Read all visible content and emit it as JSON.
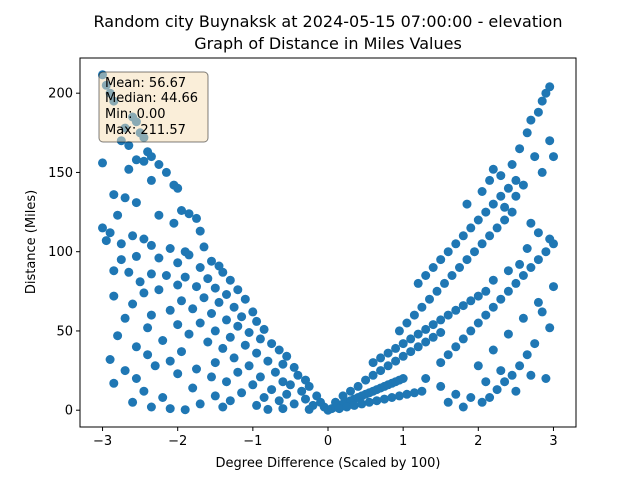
{
  "chart_data": {
    "type": "scatter",
    "title_line1": "Random city Buynaksk at 2024-05-15 07:00:00  - elevation",
    "title_line2": "Graph of Distance in Miles Values",
    "xlabel": "Degree Difference (Scaled by 100)",
    "ylabel": "Distance (Miles)",
    "xlim": [
      -3.3,
      3.3
    ],
    "ylim": [
      -10.6,
      222.2
    ],
    "xticks": [
      -3,
      -2,
      -1,
      0,
      1,
      2,
      3
    ],
    "yticks": [
      0,
      50,
      100,
      150,
      200
    ],
    "grid": false,
    "marker_color": "#1f77b4",
    "stats": {
      "mean": "Mean: 56.67",
      "median": "Median: 44.66",
      "min": "Min: 0.00",
      "max": "Max: 211.57"
    },
    "stats_box_fill": "#f5deb3",
    "points": [
      [
        -3.0,
        211.6
      ],
      [
        -2.95,
        205
      ],
      [
        -2.9,
        200
      ],
      [
        -2.85,
        195
      ],
      [
        -2.6,
        185
      ],
      [
        -2.55,
        182
      ],
      [
        -2.7,
        178
      ],
      [
        -2.5,
        175
      ],
      [
        -2.45,
        172
      ],
      [
        -2.75,
        170
      ],
      [
        -2.65,
        167
      ],
      [
        -2.4,
        163
      ],
      [
        -2.35,
        160
      ],
      [
        -2.55,
        158
      ],
      [
        -2.45,
        157
      ],
      [
        -3.0,
        156
      ],
      [
        -2.25,
        155
      ],
      [
        -2.65,
        152
      ],
      [
        -2.15,
        150
      ],
      [
        -2.35,
        145
      ],
      [
        -2.05,
        142
      ],
      [
        -2.0,
        140
      ],
      [
        -2.85,
        136
      ],
      [
        -2.7,
        134
      ],
      [
        -2.55,
        131
      ],
      [
        -2.8,
        123
      ],
      [
        -1.95,
        126
      ],
      [
        -1.85,
        124
      ],
      [
        -1.75,
        121
      ],
      [
        -2.25,
        123
      ],
      [
        -2.05,
        118
      ],
      [
        -3.0,
        115
      ],
      [
        -2.9,
        112
      ],
      [
        -2.6,
        110
      ],
      [
        -2.45,
        108
      ],
      [
        -1.7,
        113
      ],
      [
        -2.95,
        107
      ],
      [
        -2.75,
        105
      ],
      [
        -2.35,
        104
      ],
      [
        -2.1,
        102
      ],
      [
        -1.9,
        100
      ],
      [
        -1.65,
        103
      ],
      [
        -1.85,
        98
      ],
      [
        -2.55,
        97
      ],
      [
        -2.25,
        96
      ],
      [
        -2.75,
        95
      ],
      [
        -1.55,
        94
      ],
      [
        -2.0,
        93
      ],
      [
        -1.45,
        91
      ],
      [
        -1.7,
        90
      ],
      [
        -2.85,
        88
      ],
      [
        -2.65,
        87
      ],
      [
        -1.4,
        87
      ],
      [
        -2.35,
        86
      ],
      [
        -2.15,
        85
      ],
      [
        -1.9,
        84
      ],
      [
        -1.6,
        83
      ],
      [
        -1.3,
        82
      ],
      [
        -2.5,
        81
      ],
      [
        -2.0,
        79
      ],
      [
        -1.75,
        78
      ],
      [
        -1.5,
        77
      ],
      [
        -2.25,
        76
      ],
      [
        -1.2,
        76
      ],
      [
        -2.45,
        74
      ],
      [
        -1.35,
        73
      ],
      [
        -2.85,
        72
      ],
      [
        -1.65,
        71
      ],
      [
        -1.1,
        70
      ],
      [
        -1.95,
        69
      ],
      [
        -1.45,
        68
      ],
      [
        -2.6,
        67
      ],
      [
        -1.25,
        65
      ],
      [
        -1.8,
        64
      ],
      [
        -2.1,
        63
      ],
      [
        -1.0,
        62
      ],
      [
        -1.55,
        61
      ],
      [
        -2.35,
        60
      ],
      [
        -1.15,
        59
      ],
      [
        -2.7,
        58
      ],
      [
        -1.35,
        57
      ],
      [
        -0.95,
        56
      ],
      [
        -1.7,
        55
      ],
      [
        -2.0,
        54
      ],
      [
        -1.2,
        53
      ],
      [
        -2.4,
        52
      ],
      [
        -0.85,
        51
      ],
      [
        -1.5,
        50
      ],
      [
        -1.05,
        49
      ],
      [
        -1.85,
        48
      ],
      [
        -2.8,
        47
      ],
      [
        -1.3,
        46
      ],
      [
        -0.9,
        45
      ],
      [
        -2.2,
        44
      ],
      [
        -1.6,
        43
      ],
      [
        -0.75,
        42
      ],
      [
        -1.1,
        41
      ],
      [
        -2.55,
        40
      ],
      [
        -1.4,
        39
      ],
      [
        -0.65,
        38
      ],
      [
        -1.95,
        37
      ],
      [
        -0.95,
        36
      ],
      [
        -2.4,
        35
      ],
      [
        -0.55,
        34
      ],
      [
        -1.25,
        33
      ],
      [
        -2.9,
        32
      ],
      [
        -0.8,
        31
      ],
      [
        -2.1,
        31
      ],
      [
        -1.5,
        30
      ],
      [
        -0.6,
        29
      ],
      [
        -1.05,
        28
      ],
      [
        -2.3,
        28
      ],
      [
        -0.45,
        27
      ],
      [
        -1.75,
        26
      ],
      [
        -2.7,
        25
      ],
      [
        -0.7,
        24
      ],
      [
        -1.2,
        24
      ],
      [
        -2.0,
        23
      ],
      [
        -0.4,
        22
      ],
      [
        -0.9,
        21
      ],
      [
        -1.55,
        21
      ],
      [
        -2.55,
        20
      ],
      [
        -0.3,
        19
      ],
      [
        -0.6,
        18
      ],
      [
        -1.35,
        18
      ],
      [
        -2.85,
        17
      ],
      [
        -0.5,
        16
      ],
      [
        -1.0,
        16
      ],
      [
        -0.25,
        15
      ],
      [
        -1.8,
        14
      ],
      [
        -0.75,
        13
      ],
      [
        -0.35,
        12
      ],
      [
        -2.45,
        12
      ],
      [
        -1.15,
        11
      ],
      [
        -0.55,
        10
      ],
      [
        -0.15,
        9
      ],
      [
        -1.5,
        9
      ],
      [
        -0.85,
        8
      ],
      [
        -2.2,
        8
      ],
      [
        -0.3,
        7
      ],
      [
        -1.3,
        6
      ],
      [
        -0.65,
        6
      ],
      [
        -0.1,
        5
      ],
      [
        -2.6,
        5
      ],
      [
        -0.45,
        4
      ],
      [
        -1.7,
        4
      ],
      [
        -0.95,
        3
      ],
      [
        -0.2,
        3
      ],
      [
        -2.35,
        2
      ],
      [
        -0.05,
        2
      ],
      [
        -1.4,
        2
      ],
      [
        -0.6,
        1
      ],
      [
        -2.1,
        1
      ],
      [
        -0.25,
        0.5
      ],
      [
        -0.8,
        0.5
      ],
      [
        -1.9,
        0.3
      ],
      [
        0.0,
        0.0
      ],
      [
        0.05,
        1
      ],
      [
        0.1,
        2
      ],
      [
        0.15,
        3
      ],
      [
        0.2,
        4
      ],
      [
        0.25,
        5
      ],
      [
        0.3,
        6
      ],
      [
        0.35,
        7
      ],
      [
        0.4,
        8
      ],
      [
        0.45,
        9
      ],
      [
        0.5,
        10
      ],
      [
        0.55,
        11
      ],
      [
        0.6,
        12
      ],
      [
        0.65,
        13
      ],
      [
        0.7,
        14
      ],
      [
        0.75,
        15
      ],
      [
        0.8,
        16
      ],
      [
        0.85,
        17
      ],
      [
        0.9,
        18
      ],
      [
        0.95,
        19
      ],
      [
        1.0,
        20
      ],
      [
        0.1,
        5
      ],
      [
        0.2,
        9
      ],
      [
        0.3,
        12
      ],
      [
        0.4,
        15
      ],
      [
        0.5,
        19
      ],
      [
        0.6,
        22
      ],
      [
        0.7,
        25
      ],
      [
        0.8,
        28
      ],
      [
        0.9,
        31
      ],
      [
        1.0,
        34
      ],
      [
        1.1,
        37
      ],
      [
        1.2,
        40
      ],
      [
        1.3,
        43
      ],
      [
        1.4,
        46
      ],
      [
        1.5,
        49
      ],
      [
        0.15,
        1
      ],
      [
        0.25,
        2
      ],
      [
        0.35,
        3
      ],
      [
        0.45,
        4
      ],
      [
        0.55,
        5
      ],
      [
        0.65,
        6
      ],
      [
        0.75,
        7
      ],
      [
        0.85,
        8
      ],
      [
        0.95,
        9
      ],
      [
        1.05,
        10
      ],
      [
        1.15,
        11
      ],
      [
        1.25,
        12
      ],
      [
        0.6,
        30
      ],
      [
        0.7,
        33
      ],
      [
        0.8,
        36
      ],
      [
        0.9,
        39
      ],
      [
        1.0,
        42
      ],
      [
        1.1,
        45
      ],
      [
        1.2,
        48
      ],
      [
        1.3,
        51
      ],
      [
        1.4,
        54
      ],
      [
        1.5,
        57
      ],
      [
        1.6,
        60
      ],
      [
        1.7,
        63
      ],
      [
        1.8,
        66
      ],
      [
        1.9,
        69
      ],
      [
        2.0,
        72
      ],
      [
        2.1,
        75
      ],
      [
        0.95,
        50
      ],
      [
        1.05,
        55
      ],
      [
        1.15,
        60
      ],
      [
        1.25,
        65
      ],
      [
        1.35,
        70
      ],
      [
        1.45,
        75
      ],
      [
        1.55,
        80
      ],
      [
        1.65,
        85
      ],
      [
        1.75,
        90
      ],
      [
        1.85,
        95
      ],
      [
        1.95,
        100
      ],
      [
        2.05,
        105
      ],
      [
        2.15,
        110
      ],
      [
        2.25,
        115
      ],
      [
        2.35,
        120
      ],
      [
        2.45,
        125
      ],
      [
        1.2,
        80
      ],
      [
        1.3,
        85
      ],
      [
        1.4,
        90
      ],
      [
        1.5,
        95
      ],
      [
        1.6,
        100
      ],
      [
        1.7,
        105
      ],
      [
        1.8,
        110
      ],
      [
        1.9,
        115
      ],
      [
        2.0,
        120
      ],
      [
        2.1,
        125
      ],
      [
        2.2,
        130
      ],
      [
        2.3,
        135
      ],
      [
        2.4,
        140
      ],
      [
        2.5,
        145
      ],
      [
        1.5,
        30
      ],
      [
        1.6,
        35
      ],
      [
        1.7,
        40
      ],
      [
        1.8,
        45
      ],
      [
        1.9,
        50
      ],
      [
        2.0,
        55
      ],
      [
        2.1,
        60
      ],
      [
        2.2,
        65
      ],
      [
        2.3,
        70
      ],
      [
        2.4,
        75
      ],
      [
        2.5,
        80
      ],
      [
        2.6,
        85
      ],
      [
        2.7,
        90
      ],
      [
        2.8,
        95
      ],
      [
        2.9,
        100
      ],
      [
        3.0,
        105
      ],
      [
        1.3,
        20
      ],
      [
        1.5,
        15
      ],
      [
        1.7,
        10
      ],
      [
        1.9,
        8
      ],
      [
        2.1,
        18
      ],
      [
        2.3,
        25
      ],
      [
        2.5,
        12
      ],
      [
        2.7,
        22
      ],
      [
        2.9,
        20
      ],
      [
        1.6,
        5
      ],
      [
        1.8,
        2
      ],
      [
        2.0,
        28
      ],
      [
        2.2,
        38
      ],
      [
        2.4,
        48
      ],
      [
        2.6,
        58
      ],
      [
        2.8,
        68
      ],
      [
        3.0,
        78
      ],
      [
        1.85,
        130
      ],
      [
        2.05,
        138
      ],
      [
        2.15,
        145
      ],
      [
        2.2,
        152
      ],
      [
        2.3,
        148
      ],
      [
        2.45,
        155
      ],
      [
        2.55,
        165
      ],
      [
        2.65,
        175
      ],
      [
        2.7,
        183
      ],
      [
        2.8,
        188
      ],
      [
        2.85,
        195
      ],
      [
        2.9,
        200
      ],
      [
        2.95,
        204
      ],
      [
        2.75,
        160
      ],
      [
        2.6,
        142
      ],
      [
        2.85,
        150
      ],
      [
        2.95,
        170
      ],
      [
        3.0,
        160
      ],
      [
        2.5,
        135
      ],
      [
        2.35,
        128
      ],
      [
        2.7,
        118
      ],
      [
        2.8,
        112
      ],
      [
        2.95,
        108
      ],
      [
        2.65,
        102
      ],
      [
        2.55,
        92
      ],
      [
        2.4,
        88
      ],
      [
        2.2,
        82
      ],
      [
        2.85,
        62
      ],
      [
        2.95,
        52
      ],
      [
        2.75,
        42
      ],
      [
        2.65,
        35
      ],
      [
        2.55,
        28
      ],
      [
        2.45,
        22
      ],
      [
        2.35,
        18
      ],
      [
        2.25,
        13
      ],
      [
        2.15,
        8
      ],
      [
        2.05,
        5
      ]
    ]
  }
}
